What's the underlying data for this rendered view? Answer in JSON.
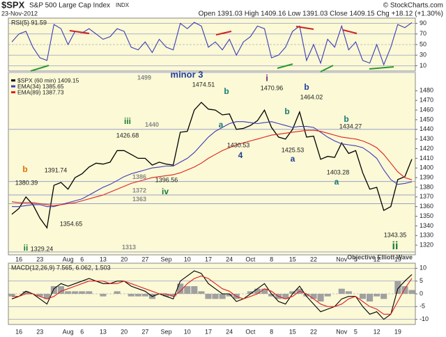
{
  "header": {
    "symbol": "$SPX",
    "name": "S&P 500 Large Cap Index",
    "exchange": "INDX",
    "copyright": "© StockCharts.com",
    "date": "23-Nov-2012",
    "quote": "Open 1391.03 High 1409.16 Low 1391.03 Close 1409.15 Chg +18.12 (+1.30%)",
    "watermark": "Objective Elliott Wave"
  },
  "chart_data": [
    {
      "type": "line",
      "title": "RSI(5) 91.59",
      "ylim": [
        0,
        100
      ],
      "yticks": [
        10,
        30,
        50,
        70,
        90
      ],
      "grid": true,
      "series": [
        {
          "color": "#3b3bb8",
          "values": [
            55,
            70,
            75,
            45,
            25,
            20,
            88,
            80,
            50,
            75,
            72,
            80,
            70,
            60,
            65,
            80,
            75,
            45,
            40,
            55,
            35,
            60,
            45,
            40,
            90,
            80,
            92,
            85,
            45,
            55,
            40,
            60,
            30,
            55,
            65,
            85,
            80,
            25,
            30,
            45,
            75,
            85,
            20,
            50,
            15,
            60,
            45,
            85,
            40,
            55,
            20,
            15,
            50,
            12,
            45,
            88,
            82,
            91.59
          ]
        }
      ]
    },
    {
      "type": "line",
      "categories": [
        null,
        "16",
        null,
        null,
        "23",
        null,
        null,
        null,
        "Aug",
        null,
        "6",
        null,
        null,
        "13",
        null,
        null,
        "20",
        null,
        null,
        "27",
        null,
        null,
        "Sep",
        null,
        null,
        "10",
        null,
        null,
        "17",
        null,
        null,
        "24",
        null,
        null,
        "Oct",
        null,
        null,
        "8",
        null,
        null,
        "15",
        null,
        null,
        "22",
        null,
        null,
        null,
        "Nov",
        null,
        "5",
        null,
        null,
        "12",
        null,
        null,
        "19",
        null,
        null
      ],
      "ylim": [
        1310,
        1499
      ],
      "yticks": [
        1320,
        1330,
        1340,
        1350,
        1360,
        1370,
        1380,
        1390,
        1400,
        1410,
        1420,
        1430,
        1440,
        1450,
        1460,
        1470,
        1480
      ],
      "grid": false,
      "series": [
        {
          "name": "$SPX (60 min) 1409.15",
          "color": "#000000",
          "values": [
            1352,
            1358,
            1370,
            1362,
            1348,
            1338,
            1382,
            1385,
            1378,
            1390,
            1394,
            1401,
            1405,
            1404,
            1406,
            1418,
            1418,
            1414,
            1410,
            1410,
            1403,
            1406,
            1404,
            1403,
            1437,
            1438,
            1460,
            1468,
            1461,
            1460,
            1455,
            1456,
            1440,
            1441,
            1444,
            1449,
            1460,
            1442,
            1432,
            1430,
            1440,
            1458,
            1432,
            1433,
            1409,
            1412,
            1411,
            1426,
            1415,
            1418,
            1395,
            1378,
            1380,
            1356,
            1360,
            1388,
            1391,
            1409.15
          ]
        },
        {
          "name": "EMA(34) 1385.65",
          "color": "#3b3bb8",
          "values": [
            1360,
            1360,
            1361,
            1362,
            1362,
            1360,
            1360,
            1362,
            1364,
            1366,
            1368,
            1372,
            1376,
            1380,
            1383,
            1387,
            1391,
            1394,
            1396,
            1398,
            1400,
            1401,
            1402,
            1402,
            1406,
            1410,
            1416,
            1424,
            1432,
            1438,
            1442,
            1446,
            1448,
            1448,
            1447,
            1446,
            1447,
            1448,
            1446,
            1444,
            1442,
            1443,
            1443,
            1442,
            1437,
            1432,
            1428,
            1425,
            1424,
            1423,
            1421,
            1416,
            1410,
            1398,
            1388,
            1383,
            1384,
            1385.65
          ]
        },
        {
          "name": "EMA(89) 1387.73",
          "color": "#e02020",
          "values": [
            1365,
            1364,
            1364,
            1364,
            1363,
            1362,
            1361,
            1362,
            1363,
            1364,
            1366,
            1368,
            1370,
            1372,
            1375,
            1378,
            1381,
            1384,
            1386,
            1388,
            1390,
            1391,
            1392,
            1393,
            1395,
            1398,
            1401,
            1405,
            1410,
            1414,
            1418,
            1421,
            1424,
            1426,
            1428,
            1430,
            1432,
            1434,
            1435,
            1436,
            1437,
            1438,
            1439,
            1439,
            1438,
            1436,
            1434,
            1432,
            1431,
            1430,
            1428,
            1425,
            1421,
            1414,
            1405,
            1396,
            1390,
            1387.73
          ]
        }
      ],
      "levels": [
        1499,
        1440,
        1386,
        1372,
        1363,
        1313
      ],
      "annotations": [
        {
          "text": "minor 3",
          "color": "#1f3f99"
        },
        {
          "text": "1474.51",
          "color": "#222222"
        },
        {
          "text": "b",
          "color": "#1a7a7a"
        },
        {
          "text": "i",
          "color": "#7a2a8a"
        },
        {
          "text": "1470.96",
          "color": "#222222"
        },
        {
          "text": "b",
          "color": "#1f3f99"
        },
        {
          "text": "1464.02",
          "color": "#222222"
        },
        {
          "text": "iii",
          "color": "#1a7a3a"
        },
        {
          "text": "1426.68",
          "color": "#222222"
        },
        {
          "text": "b",
          "color": "#1a7a7a"
        },
        {
          "text": "a",
          "color": "#1a7a7a"
        },
        {
          "text": "b",
          "color": "#1a7a7a"
        },
        {
          "text": "1434.27",
          "color": "#222222"
        },
        {
          "text": "1430.53",
          "color": "#222222"
        },
        {
          "text": "1425.53",
          "color": "#222222"
        },
        {
          "text": "4",
          "color": "#1f3f99"
        },
        {
          "text": "a",
          "color": "#1f3f99"
        },
        {
          "text": "b",
          "color": "#e07000"
        },
        {
          "text": "1391.74",
          "color": "#222222"
        },
        {
          "text": "1380.39",
          "color": "#222222"
        },
        {
          "text": "1403.28",
          "color": "#222222"
        },
        {
          "text": "1396.56",
          "color": "#222222"
        },
        {
          "text": "a",
          "color": "#1a7a7a"
        },
        {
          "text": "iv",
          "color": "#1a7a3a"
        },
        {
          "text": "1354.65",
          "color": "#222222"
        },
        {
          "text": "1343.35",
          "color": "#222222"
        },
        {
          "text": "ii",
          "color": "#1a7a3a"
        },
        {
          "text": "1329.24",
          "color": "#222222"
        },
        {
          "text": "ii",
          "color": "#1a7a3a"
        }
      ]
    },
    {
      "type": "line",
      "title": "MACD(12,26,9) 7.565, 6.062, 1.503",
      "ylim": [
        -12,
        12
      ],
      "yticks": [
        -10,
        -5,
        0,
        5,
        10
      ],
      "grid": true,
      "series": [
        {
          "type": "bar",
          "color": "#a0a0a0",
          "values": [
            -1,
            0,
            1,
            0,
            -1,
            -2,
            3,
            3,
            1,
            1,
            1,
            1,
            0,
            -1,
            0,
            1,
            0,
            -1,
            -1,
            -1,
            -2,
            0,
            -1,
            -1,
            4,
            3,
            3,
            1,
            -2,
            -2,
            -2,
            -1,
            -2,
            0,
            1,
            2,
            2,
            -1,
            -2,
            -2,
            1,
            2,
            -1,
            -2,
            -3,
            -1,
            0,
            2,
            1,
            0,
            -2,
            -3,
            -1,
            -2,
            0,
            5,
            3,
            1.503
          ]
        },
        {
          "color": "#000000",
          "values": [
            -2,
            -1,
            1,
            0,
            -2,
            -4,
            2,
            4,
            3,
            4,
            5,
            6,
            5,
            4,
            4,
            5,
            5,
            3,
            2,
            1,
            -1,
            0,
            -1,
            -2,
            5,
            7,
            9,
            8,
            4,
            2,
            0,
            0,
            -3,
            -2,
            0,
            2,
            4,
            0,
            -3,
            -4,
            0,
            3,
            -1,
            -4,
            -7,
            -6,
            -5,
            -2,
            -1,
            -1,
            -5,
            -8,
            -7,
            -10,
            -8,
            2,
            5,
            7.565
          ]
        },
        {
          "color": "#e02020",
          "values": [
            -1,
            -1,
            0,
            0,
            -1,
            -2,
            -1,
            1,
            2,
            3,
            4,
            5,
            5,
            5,
            4,
            4,
            5,
            4,
            3,
            2,
            1,
            0,
            0,
            -1,
            1,
            4,
            6,
            7,
            6,
            4,
            2,
            1,
            -1,
            -2,
            -1,
            0,
            2,
            1,
            -1,
            -2,
            -1,
            1,
            0,
            -2,
            -4,
            -5,
            -5,
            -4,
            -2,
            -1,
            -3,
            -5,
            -6,
            -8,
            -8,
            -3,
            2,
            6.062
          ]
        }
      ]
    }
  ]
}
